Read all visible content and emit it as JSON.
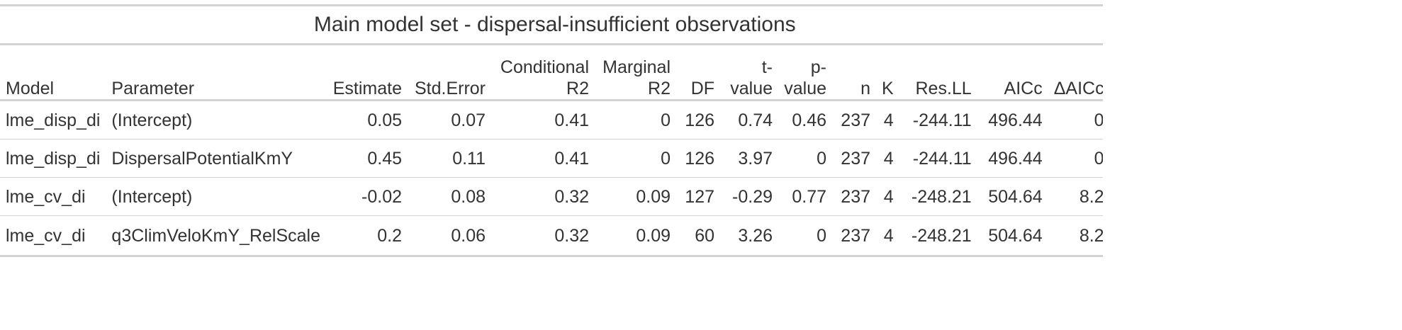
{
  "table": {
    "title": "Main model set - dispersal-insufficient observations",
    "columns": [
      {
        "line1": "",
        "line2": "Model",
        "align": "l"
      },
      {
        "line1": "",
        "line2": "Parameter",
        "align": "l"
      },
      {
        "line1": "",
        "line2": "Estimate",
        "align": "r"
      },
      {
        "line1": "",
        "line2": "Std.Error",
        "align": "r"
      },
      {
        "line1": "Conditional",
        "line2": "R2",
        "align": "r"
      },
      {
        "line1": "Marginal",
        "line2": "R2",
        "align": "r"
      },
      {
        "line1": "",
        "line2": "DF",
        "align": "r"
      },
      {
        "line1": "t-",
        "line2": "value",
        "align": "r"
      },
      {
        "line1": "p-",
        "line2": "value",
        "align": "r"
      },
      {
        "line1": "",
        "line2": "n",
        "align": "r"
      },
      {
        "line1": "",
        "line2": "K",
        "align": "r"
      },
      {
        "line1": "",
        "line2": "Res.LL",
        "align": "r"
      },
      {
        "line1": "",
        "line2": "AICc",
        "align": "r"
      },
      {
        "line1": "",
        "line2": "ΔAICc",
        "align": "r"
      }
    ],
    "rows": [
      [
        "lme_disp_di",
        "(Intercept)",
        "0.05",
        "0.07",
        "0.41",
        "0",
        "126",
        "0.74",
        "0.46",
        "237",
        "4",
        "-244.11",
        "496.44",
        "0"
      ],
      [
        "lme_disp_di",
        "DispersalPotentialKmY",
        "0.45",
        "0.11",
        "0.41",
        "0",
        "126",
        "3.97",
        "0",
        "237",
        "4",
        "-244.11",
        "496.44",
        "0"
      ],
      [
        "lme_cv_di",
        "(Intercept)",
        "-0.02",
        "0.08",
        "0.32",
        "0.09",
        "127",
        "-0.29",
        "0.77",
        "237",
        "4",
        "-248.21",
        "504.64",
        "8.2"
      ],
      [
        "lme_cv_di",
        "q3ClimVeloKmY_RelScale",
        "0.2",
        "0.06",
        "0.32",
        "0.09",
        "60",
        "3.26",
        "0",
        "237",
        "4",
        "-248.21",
        "504.64",
        "8.2"
      ]
    ]
  }
}
